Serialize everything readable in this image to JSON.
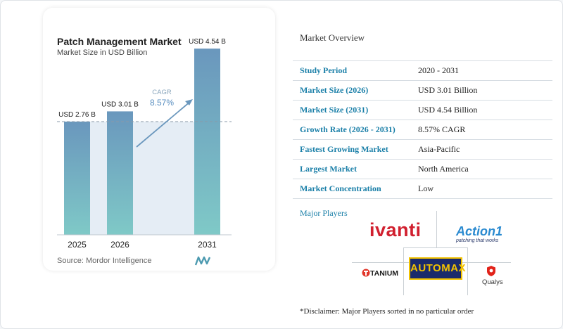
{
  "chart_data": {
    "type": "bar",
    "title": "Patch Management Market",
    "subtitle": "Market Size in USD Billion",
    "categories": [
      "2025",
      "2026",
      "2031"
    ],
    "values": [
      2.76,
      3.01,
      4.54
    ],
    "value_labels": [
      "USD 2.76 B",
      "USD 3.01 B",
      "USD 4.54 B"
    ],
    "annotation": {
      "label": "CAGR",
      "value": "8.57%"
    },
    "ylim": [
      0,
      4.8
    ],
    "colors": {
      "bar_top": "#6a97bd",
      "bar_bottom": "#7fc9c7",
      "area": "#e5edf5",
      "arrow": "#6a97bd",
      "cagr_label": "#8aa6bc",
      "cagr_value": "#5a8fc0"
    },
    "grid": false
  },
  "source": "Source: Mordor Intelligence",
  "overview": {
    "title": "Market Overview",
    "rows": [
      {
        "key": "Study Period",
        "value": "2020 - 2031"
      },
      {
        "key": "Market Size (2026)",
        "value": "USD 3.01 Billion"
      },
      {
        "key": "Market Size (2031)",
        "value": "USD 4.54 Billion"
      },
      {
        "key": "Growth Rate (2026 - 2031)",
        "value": "8.57% CAGR"
      },
      {
        "key": "Fastest Growing Market",
        "value": "Asia-Pacific"
      },
      {
        "key": "Largest Market",
        "value": "North America"
      },
      {
        "key": "Market Concentration",
        "value": "Low"
      }
    ]
  },
  "players": {
    "title": "Major Players",
    "logos": {
      "ivanti": "ivanti",
      "action1": "Action1",
      "action1_tagline": "patching that works",
      "tanium": "TANIUM",
      "automox": "AUTOMAX",
      "qualys": "Qualys"
    }
  },
  "disclaimer": "*Disclaimer: Major Players sorted in no particular order"
}
